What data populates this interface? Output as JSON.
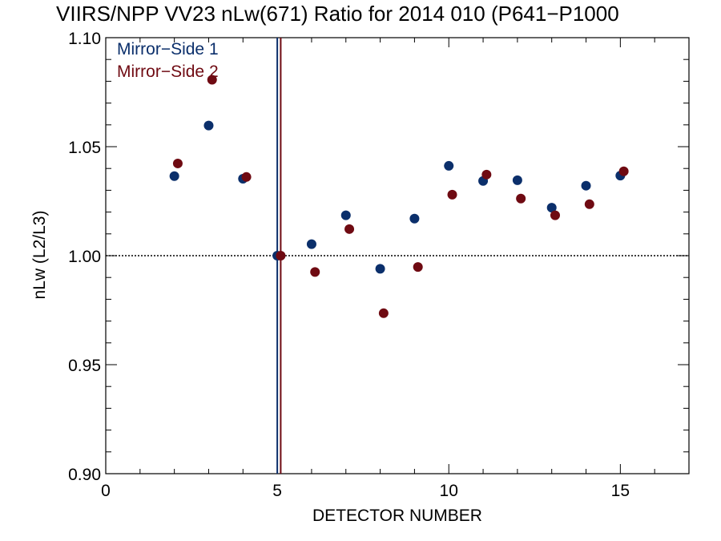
{
  "chart_data": {
    "type": "scatter",
    "title": "VIIRS/NPP VV23 nLw(671) Ratio for 2014 010 (P641−P1000",
    "xlabel": "DETECTOR NUMBER",
    "ylabel": "nLw (L2/L3)",
    "xlim": [
      0,
      17
    ],
    "ylim": [
      0.9,
      1.1
    ],
    "x_ticks": [
      0,
      5,
      10,
      15
    ],
    "x_tick_labels": [
      "0",
      "5",
      "10",
      "15"
    ],
    "y_ticks": [
      0.9,
      0.95,
      1.0,
      1.05,
      1.1
    ],
    "y_tick_labels": [
      "0.90",
      "0.95",
      "1.00",
      "1.05",
      "1.10"
    ],
    "reference_line_y": 1.0,
    "vertical_lines_x": [
      5,
      5.1
    ],
    "legend_position": "top-left",
    "series": [
      {
        "name": "Mirror−Side 1",
        "color": "#0b2f6b",
        "x": [
          2,
          3,
          4,
          5,
          6,
          7,
          8,
          9,
          10,
          11,
          12,
          13,
          14,
          15
        ],
        "y": [
          1.0365,
          1.0597,
          1.0353,
          1.0,
          1.0053,
          1.0185,
          0.994,
          1.017,
          1.0412,
          1.0343,
          1.0346,
          1.022,
          1.0321,
          1.0367
        ]
      },
      {
        "name": "Mirror−Side 2",
        "color": "#6f0a12",
        "x": [
          2.1,
          3.1,
          4.1,
          5.1,
          6.1,
          7.1,
          8.1,
          9.1,
          10.1,
          11.1,
          12.1,
          13.1,
          14.1,
          15.1
        ],
        "y": [
          1.0423,
          1.0807,
          1.0361,
          1.0,
          0.9925,
          1.0122,
          0.9736,
          0.9948,
          1.028,
          1.0372,
          1.0262,
          1.0185,
          1.0236,
          1.0387
        ]
      }
    ]
  }
}
